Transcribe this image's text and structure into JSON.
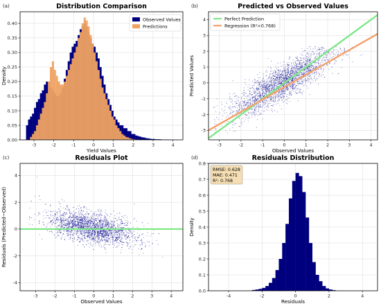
{
  "colors": {
    "observed": "#00007f",
    "predictions": "#f0a262",
    "perfect_line": "#7ee787",
    "regression_line": "#f4a06a",
    "scatter": "#00008b",
    "zero_line": "#7ee787",
    "resid_hist": "#00007f",
    "stats_box_fill": "#f5deb3",
    "grid": "#d9d9d9"
  },
  "chart_data": [
    {
      "type": "bar",
      "panel_label": "(a)",
      "title": "Distribution Comparison",
      "xlabel": "Yield Values",
      "ylabel": "Density",
      "xlim": [
        -3.7,
        4.5
      ],
      "ylim": [
        0,
        0.44
      ],
      "xticks": [
        -3,
        -2,
        -1,
        0,
        1,
        2,
        3,
        4
      ],
      "yticks": [
        0.0,
        0.05,
        0.1,
        0.15,
        0.2,
        0.25,
        0.3,
        0.35,
        0.4
      ],
      "ytick_labels": [
        "0.00",
        "0.05",
        "0.10",
        "0.15",
        "0.20",
        "0.25",
        "0.30",
        "0.35",
        "0.40"
      ],
      "grid": true,
      "legend": "top-right",
      "bins": [
        -3.4,
        -3.3,
        -3.2,
        -3.1,
        -3.0,
        -2.9,
        -2.8,
        -2.7,
        -2.6,
        -2.5,
        -2.4,
        -2.3,
        -2.2,
        -2.1,
        -2.0,
        -1.9,
        -1.8,
        -1.7,
        -1.6,
        -1.5,
        -1.4,
        -1.3,
        -1.2,
        -1.1,
        -1.0,
        -0.9,
        -0.8,
        -0.7,
        -0.6,
        -0.5,
        -0.4,
        -0.3,
        -0.2,
        -0.1,
        0.0,
        0.1,
        0.2,
        0.3,
        0.4,
        0.5,
        0.6,
        0.7,
        0.8,
        0.9,
        1.0,
        1.1,
        1.2,
        1.3,
        1.4,
        1.5,
        1.6,
        1.7,
        1.8,
        1.9,
        2.0,
        2.1,
        2.2,
        2.3,
        2.4,
        2.5,
        2.6,
        2.7,
        2.8,
        2.9,
        3.0,
        3.1,
        3.2,
        3.3,
        3.4,
        3.5,
        3.6,
        3.7,
        3.8,
        3.9,
        4.0,
        4.1,
        4.2
      ],
      "series": [
        {
          "name": "Observed Values",
          "values": [
            0.05,
            0.07,
            0.08,
            0.09,
            0.11,
            0.13,
            0.14,
            0.16,
            0.17,
            0.19,
            0.2,
            0.2,
            0.18,
            0.17,
            0.16,
            0.15,
            0.15,
            0.16,
            0.18,
            0.21,
            0.24,
            0.27,
            0.3,
            0.32,
            0.33,
            0.34,
            0.36,
            0.38,
            0.39,
            0.4,
            0.39,
            0.37,
            0.35,
            0.33,
            0.32,
            0.3,
            0.28,
            0.25,
            0.22,
            0.19,
            0.16,
            0.14,
            0.12,
            0.1,
            0.08,
            0.07,
            0.06,
            0.05,
            0.05,
            0.04,
            0.04,
            0.03,
            0.03,
            0.02,
            0.02,
            0.015,
            0.013,
            0.011,
            0.009,
            0.008,
            0.006,
            0.005,
            0.004,
            0.003,
            0.003,
            0.002,
            0.002,
            0.002,
            0.001,
            0.001,
            0.001,
            0.001,
            0.001,
            0.0,
            0.0,
            0.0,
            0.0
          ]
        },
        {
          "name": "Predictions",
          "values": [
            0.0,
            0.0,
            0.01,
            0.02,
            0.03,
            0.05,
            0.07,
            0.09,
            0.11,
            0.13,
            0.16,
            0.2,
            0.25,
            0.27,
            0.24,
            0.22,
            0.2,
            0.19,
            0.19,
            0.2,
            0.22,
            0.24,
            0.26,
            0.28,
            0.3,
            0.32,
            0.35,
            0.37,
            0.4,
            0.42,
            0.41,
            0.39,
            0.36,
            0.33,
            0.3,
            0.27,
            0.24,
            0.21,
            0.18,
            0.16,
            0.14,
            0.12,
            0.1,
            0.08,
            0.07,
            0.05,
            0.04,
            0.03,
            0.02,
            0.015,
            0.01,
            0.008,
            0.005,
            0.003,
            0.002,
            0.001,
            0.001,
            0.0,
            0.0,
            0.0,
            0.0,
            0.0,
            0.0,
            0.0,
            0.0,
            0.0,
            0.0,
            0.0,
            0.0,
            0.0,
            0.0,
            0.0,
            0.0,
            0.0,
            0.0,
            0.0,
            0.0
          ]
        }
      ]
    },
    {
      "type": "scatter",
      "panel_label": "(b)",
      "title": "Predicted vs Observed Values",
      "xlabel": "Observed Values",
      "ylabel": "Predicted Values",
      "xlim": [
        -3.5,
        4.3
      ],
      "ylim": [
        -3.6,
        4.5
      ],
      "xticks": [
        -3,
        -2,
        -1,
        0,
        1,
        2,
        3,
        4
      ],
      "yticks": [
        -3,
        -2,
        -1,
        0,
        1,
        2,
        3,
        4
      ],
      "grid": true,
      "legend": "top-left",
      "lines": [
        {
          "name": "Perfect Prediction",
          "x": [
            -3.5,
            4.3
          ],
          "y": [
            -3.5,
            4.3
          ]
        },
        {
          "name": "Regression (R²=0.768)",
          "x": [
            -3.5,
            4.3
          ],
          "y": [
            -3.0,
            3.1
          ]
        }
      ],
      "point_cloud": {
        "n": 2600,
        "note": "dense cloud around regression line"
      }
    },
    {
      "type": "scatter",
      "panel_label": "(c)",
      "title": "Residuals Plot",
      "xlabel": "Observed Values",
      "ylabel": "Residuals (Predicted−Observed)",
      "xlim": [
        -3.8,
        4.6
      ],
      "ylim": [
        -4.6,
        4.9
      ],
      "xticks": [
        -3,
        -2,
        -1,
        0,
        1,
        2,
        3,
        4
      ],
      "yticks": [
        -4,
        -2,
        0,
        2,
        4
      ],
      "grid": true,
      "lines": [
        {
          "name": "zero",
          "x": [
            -3.8,
            4.6
          ],
          "y": [
            0,
            0
          ]
        }
      ],
      "point_cloud": {
        "n": 2600
      }
    },
    {
      "type": "bar",
      "panel_label": "(d)",
      "title": "Residuals Distribution",
      "xlabel": "Residuals",
      "ylabel": "Density",
      "xlim": [
        -5.2,
        4.9
      ],
      "ylim": [
        0,
        0.8
      ],
      "xticks": [
        -4,
        -2,
        0,
        2,
        4
      ],
      "yticks": [
        0.0,
        0.1,
        0.2,
        0.3,
        0.4,
        0.5,
        0.6,
        0.7,
        0.8
      ],
      "ytick_labels": [
        "0.0",
        "0.1",
        "0.2",
        "0.3",
        "0.4",
        "0.5",
        "0.6",
        "0.7",
        "0.8"
      ],
      "grid": true,
      "stats_box": [
        "RMSE: 0.628",
        "MAE: 0.471",
        "R²: 0.768"
      ],
      "bins": [
        -2.6,
        -2.4,
        -2.2,
        -2.0,
        -1.8,
        -1.6,
        -1.4,
        -1.2,
        -1.0,
        -0.8,
        -0.6,
        -0.4,
        -0.2,
        0.0,
        0.2,
        0.4,
        0.6,
        0.8,
        1.0,
        1.2,
        1.4,
        1.6,
        1.8,
        2.0,
        2.2
      ],
      "values": [
        0.005,
        0.008,
        0.012,
        0.018,
        0.03,
        0.05,
        0.08,
        0.13,
        0.2,
        0.3,
        0.42,
        0.58,
        0.69,
        0.74,
        0.72,
        0.62,
        0.46,
        0.3,
        0.18,
        0.1,
        0.06,
        0.03,
        0.015,
        0.008,
        0.004
      ]
    }
  ]
}
